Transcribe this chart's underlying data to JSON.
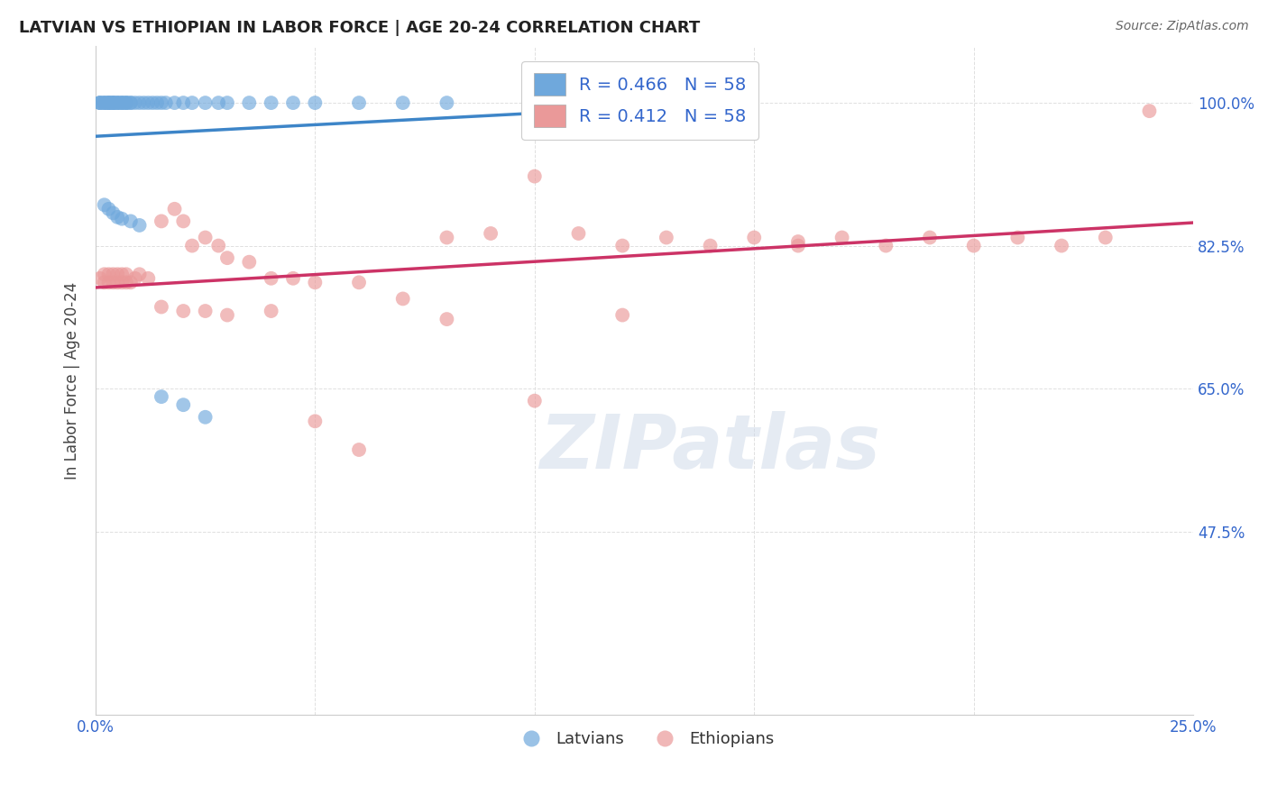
{
  "title": "LATVIAN VS ETHIOPIAN IN LABOR FORCE | AGE 20-24 CORRELATION CHART",
  "source": "Source: ZipAtlas.com",
  "ylabel": "In Labor Force | Age 20-24",
  "xlim": [
    0.0,
    0.25
  ],
  "ylim": [
    0.25,
    1.07
  ],
  "xticks": [
    0.0,
    0.05,
    0.1,
    0.15,
    0.2,
    0.25
  ],
  "xticklabels": [
    "0.0%",
    "",
    "",
    "",
    "",
    "25.0%"
  ],
  "ytick_positions": [
    0.475,
    0.65,
    0.825,
    1.0
  ],
  "ytick_labels": [
    "47.5%",
    "65.0%",
    "82.5%",
    "100.0%"
  ],
  "latvian_color": "#6fa8dc",
  "ethiopian_color": "#ea9999",
  "trendline_latvian_color": "#3d85c8",
  "trendline_ethiopian_color": "#cc3366",
  "R_latvian": 0.466,
  "R_ethiopian": 0.412,
  "N_latvian": 58,
  "N_ethiopian": 58,
  "lv_x": [
    0.001,
    0.001,
    0.001,
    0.002,
    0.002,
    0.002,
    0.003,
    0.003,
    0.003,
    0.003,
    0.004,
    0.004,
    0.004,
    0.004,
    0.005,
    0.005,
    0.005,
    0.006,
    0.006,
    0.006,
    0.007,
    0.007,
    0.007,
    0.008,
    0.008,
    0.009,
    0.01,
    0.011,
    0.012,
    0.013,
    0.014,
    0.015,
    0.016,
    0.018,
    0.02,
    0.022,
    0.025,
    0.028,
    0.03,
    0.035,
    0.04,
    0.045,
    0.05,
    0.06,
    0.07,
    0.08,
    0.1,
    0.12,
    0.002,
    0.003,
    0.004,
    0.005,
    0.006,
    0.008,
    0.01,
    0.015,
    0.02,
    0.025
  ],
  "lv_y": [
    1.0,
    1.0,
    1.0,
    1.0,
    1.0,
    1.0,
    1.0,
    1.0,
    1.0,
    1.0,
    1.0,
    1.0,
    1.0,
    1.0,
    1.0,
    1.0,
    1.0,
    1.0,
    1.0,
    1.0,
    1.0,
    1.0,
    1.0,
    1.0,
    1.0,
    1.0,
    1.0,
    1.0,
    1.0,
    1.0,
    1.0,
    1.0,
    1.0,
    1.0,
    1.0,
    1.0,
    1.0,
    1.0,
    1.0,
    1.0,
    1.0,
    1.0,
    1.0,
    1.0,
    1.0,
    1.0,
    1.0,
    1.0,
    0.875,
    0.87,
    0.865,
    0.86,
    0.858,
    0.855,
    0.85,
    0.64,
    0.63,
    0.615
  ],
  "eth_x": [
    0.001,
    0.002,
    0.002,
    0.003,
    0.003,
    0.004,
    0.004,
    0.005,
    0.005,
    0.006,
    0.006,
    0.007,
    0.007,
    0.008,
    0.009,
    0.01,
    0.012,
    0.015,
    0.018,
    0.02,
    0.022,
    0.025,
    0.028,
    0.03,
    0.035,
    0.04,
    0.045,
    0.05,
    0.06,
    0.07,
    0.08,
    0.09,
    0.1,
    0.11,
    0.12,
    0.13,
    0.14,
    0.15,
    0.16,
    0.17,
    0.18,
    0.19,
    0.2,
    0.21,
    0.22,
    0.23,
    0.24,
    0.015,
    0.02,
    0.025,
    0.03,
    0.04,
    0.05,
    0.06,
    0.08,
    0.1,
    0.12,
    0.16
  ],
  "eth_y": [
    0.785,
    0.78,
    0.79,
    0.78,
    0.79,
    0.78,
    0.79,
    0.78,
    0.79,
    0.78,
    0.79,
    0.78,
    0.79,
    0.78,
    0.785,
    0.79,
    0.785,
    0.855,
    0.87,
    0.855,
    0.825,
    0.835,
    0.825,
    0.81,
    0.805,
    0.785,
    0.785,
    0.78,
    0.78,
    0.76,
    0.835,
    0.84,
    0.91,
    0.84,
    0.825,
    0.835,
    0.825,
    0.835,
    0.825,
    0.835,
    0.825,
    0.835,
    0.825,
    0.835,
    0.825,
    0.835,
    0.99,
    0.75,
    0.745,
    0.745,
    0.74,
    0.745,
    0.61,
    0.575,
    0.735,
    0.635,
    0.74,
    0.83
  ],
  "background_color": "#ffffff",
  "grid_color": "#e0e0e0"
}
